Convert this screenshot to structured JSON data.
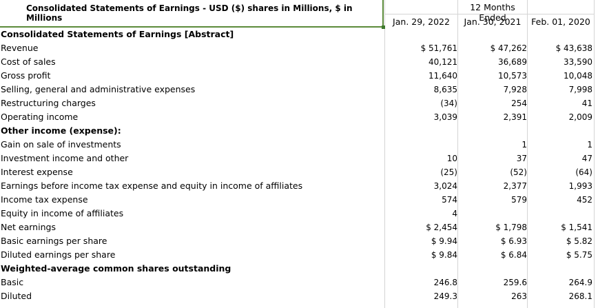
{
  "header": {
    "title": "Consolidated Statements of Earnings - USD ($) shares in Millions, $ in Millions",
    "period_group": "12 Months Ended",
    "columns": [
      "Jan. 29, 2022",
      "Jan. 30, 2021",
      "Feb. 01, 2020"
    ]
  },
  "rows": [
    {
      "label": "Consolidated Statements of Earnings [Abstract]",
      "bold": true,
      "values": [
        "",
        "",
        ""
      ]
    },
    {
      "label": "Revenue",
      "bold": false,
      "values": [
        "$ 51,761",
        "$ 47,262",
        "$ 43,638"
      ]
    },
    {
      "label": "Cost of sales",
      "bold": false,
      "values": [
        "40,121",
        "36,689",
        "33,590"
      ]
    },
    {
      "label": "Gross profit",
      "bold": false,
      "values": [
        "11,640",
        "10,573",
        "10,048"
      ]
    },
    {
      "label": "Selling, general and administrative expenses",
      "bold": false,
      "values": [
        "8,635",
        "7,928",
        "7,998"
      ]
    },
    {
      "label": "Restructuring charges",
      "bold": false,
      "values": [
        "(34)",
        "254",
        "41"
      ]
    },
    {
      "label": "Operating income",
      "bold": false,
      "values": [
        "3,039",
        "2,391",
        "2,009"
      ]
    },
    {
      "label": "Other income (expense):",
      "bold": true,
      "values": [
        "",
        "",
        ""
      ]
    },
    {
      "label": "Gain on sale of investments",
      "bold": false,
      "values": [
        "",
        "1",
        "1"
      ]
    },
    {
      "label": "Investment income and other",
      "bold": false,
      "values": [
        "10",
        "37",
        "47"
      ]
    },
    {
      "label": "Interest expense",
      "bold": false,
      "values": [
        "(25)",
        "(52)",
        "(64)"
      ]
    },
    {
      "label": "Earnings before income tax expense and equity in income of affiliates",
      "bold": false,
      "values": [
        "3,024",
        "2,377",
        "1,993"
      ]
    },
    {
      "label": "Income tax expense",
      "bold": false,
      "values": [
        "574",
        "579",
        "452"
      ]
    },
    {
      "label": "Equity in income of affiliates",
      "bold": false,
      "values": [
        "4",
        "",
        ""
      ]
    },
    {
      "label": "Net earnings",
      "bold": false,
      "values": [
        "$ 2,454",
        "$ 1,798",
        "$ 1,541"
      ]
    },
    {
      "label": "Basic earnings per share",
      "bold": false,
      "values": [
        "$ 9.94",
        "$ 6.93",
        "$ 5.82"
      ]
    },
    {
      "label": "Diluted earnings per share",
      "bold": false,
      "values": [
        "$ 9.84",
        "$ 6.84",
        "$ 5.75"
      ]
    },
    {
      "label": "Weighted-average common shares outstanding",
      "bold": true,
      "values": [
        "",
        "",
        ""
      ]
    },
    {
      "label": "Basic",
      "bold": false,
      "values": [
        "246.8",
        "259.6",
        "264.9"
      ]
    },
    {
      "label": "Diluted",
      "bold": false,
      "values": [
        "249.3",
        "263",
        "268.1"
      ]
    }
  ]
}
